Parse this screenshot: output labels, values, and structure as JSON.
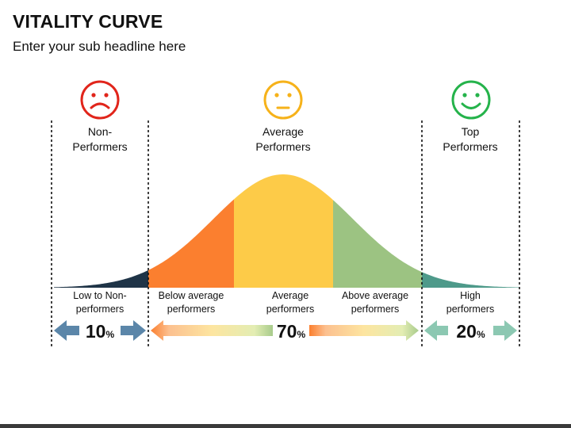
{
  "title": "VITALITY CURVE",
  "subtitle": "Enter your sub headline here",
  "colors": {
    "dark": "#1f3447",
    "orange": "#fb7f2f",
    "yellow": "#fdcb48",
    "green": "#9cc382",
    "teal": "#4e9a8a",
    "sad": "#e1251b",
    "neutral": "#f6b21a",
    "happy": "#25b34b",
    "blue_arrow": "#5b86a9"
  },
  "groups": {
    "non": {
      "label": "Non-\nPerformers",
      "icon": "sad-face-icon"
    },
    "average": {
      "label": "Average\nPerformers",
      "icon": "neutral-face-icon"
    },
    "top": {
      "label": "Top\nPerformers",
      "icon": "happy-face-icon"
    }
  },
  "segments": {
    "low": "Low to Non-\nperformers",
    "below": "Below average\nperformers",
    "average": "Average\nperformers",
    "above": "Above average\nperformers",
    "high": "High\nperformers"
  },
  "percentages": {
    "non": {
      "value": "10",
      "unit": "%"
    },
    "average": {
      "value": "70",
      "unit": "%"
    },
    "top": {
      "value": "20",
      "unit": "%"
    }
  }
}
